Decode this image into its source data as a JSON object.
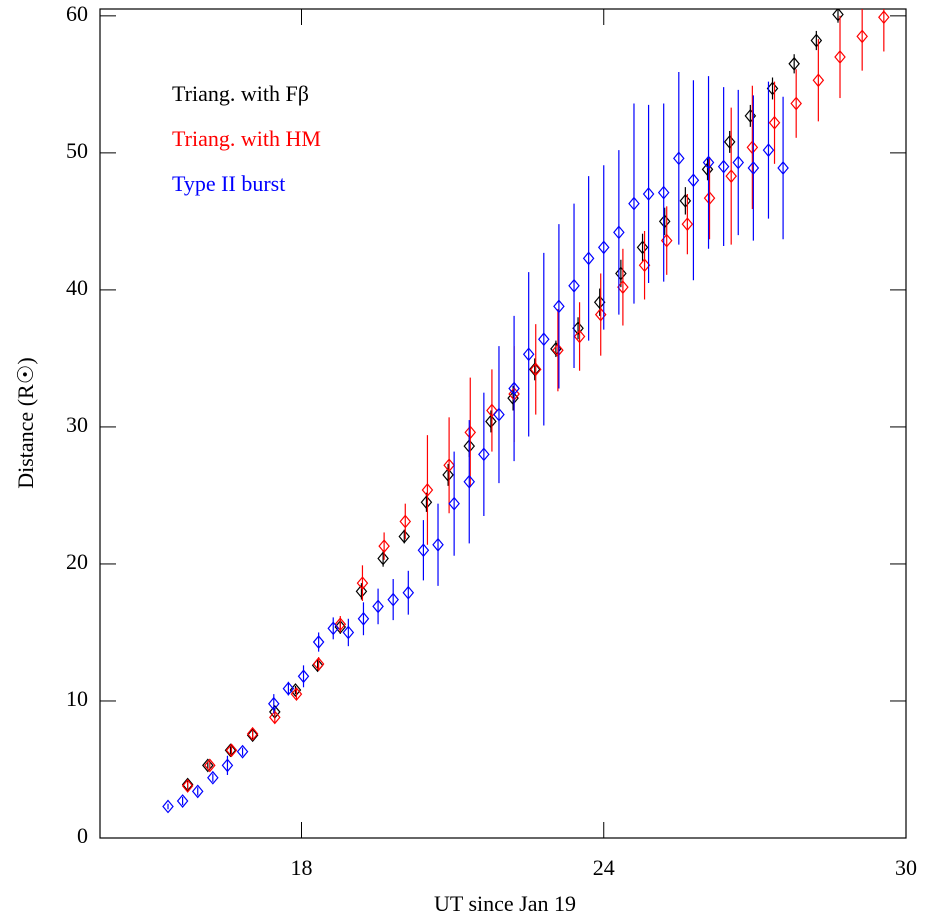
{
  "chart_data": {
    "type": "scatter",
    "x_label": "UT since Jan 19",
    "y_label": "Distance (R☉)",
    "xlim": [
      14,
      30
    ],
    "xticks": [
      18,
      24,
      30
    ],
    "ylim": [
      0,
      60.5
    ],
    "yticks": [
      0,
      10,
      20,
      30,
      40,
      50,
      60
    ],
    "grid": false,
    "legend": "upper left",
    "series": [
      {
        "name": "Triang. with Fβ",
        "color": "#000000",
        "x": [
          15.74,
          16.14,
          16.59,
          17.03,
          17.47,
          17.88,
          18.32,
          18.77,
          19.19,
          19.62,
          20.04,
          20.48,
          20.91,
          21.33,
          21.76,
          22.2,
          22.63,
          23.05,
          23.49,
          23.92,
          24.34,
          24.77,
          25.21,
          25.62,
          26.06,
          26.5,
          26.91,
          27.35,
          27.78,
          28.22,
          28.65
        ],
        "values": [
          3.9,
          5.3,
          6.4,
          7.5,
          9.2,
          10.8,
          12.6,
          15.4,
          18.0,
          20.4,
          22.0,
          24.5,
          26.5,
          28.6,
          30.4,
          32.1,
          34.2,
          35.7,
          37.2,
          39.1,
          41.2,
          43.1,
          45.0,
          46.5,
          48.8,
          50.8,
          52.7,
          54.7,
          56.5,
          58.2,
          60.1
        ],
        "errors": [
          0.3,
          0.3,
          0.3,
          0.3,
          0.3,
          0.3,
          0.4,
          0.5,
          0.6,
          0.6,
          0.5,
          0.7,
          0.8,
          0.8,
          0.8,
          0.9,
          0.8,
          0.6,
          0.8,
          1.0,
          1.0,
          1.0,
          1.0,
          1.0,
          0.8,
          0.8,
          0.8,
          0.8,
          0.7,
          0.7,
          0.6
        ]
      },
      {
        "name": "Triang. with HM",
        "color": "#ff0000",
        "x": [
          15.74,
          16.18,
          16.61,
          17.03,
          17.47,
          17.9,
          18.34,
          18.77,
          19.21,
          19.64,
          20.06,
          20.5,
          20.93,
          21.35,
          21.78,
          22.22,
          22.65,
          23.09,
          23.52,
          23.94,
          24.38,
          24.81,
          25.25,
          25.66,
          26.1,
          26.53,
          26.95,
          27.39,
          27.82,
          28.26,
          28.69,
          29.13,
          29.56
        ],
        "values": [
          3.8,
          5.3,
          6.4,
          7.6,
          8.8,
          10.5,
          12.7,
          15.6,
          18.6,
          21.3,
          23.1,
          25.4,
          27.2,
          29.6,
          31.2,
          32.4,
          34.2,
          35.6,
          36.6,
          38.2,
          40.2,
          41.8,
          43.6,
          44.8,
          46.7,
          48.3,
          50.4,
          52.2,
          53.6,
          55.3,
          57.0,
          58.5,
          59.9
        ],
        "errors": [
          0.3,
          0.3,
          0.3,
          0.3,
          0.4,
          0.4,
          0.5,
          0.6,
          1.3,
          1.0,
          1.3,
          4.0,
          3.5,
          4.0,
          3.0,
          3.5,
          3.3,
          3.0,
          2.5,
          3.0,
          2.8,
          2.5,
          2.5,
          2.2,
          3.0,
          5.0,
          4.5,
          3.0,
          2.5,
          3.0,
          3.0,
          2.5,
          2.5
        ]
      },
      {
        "name": "Type II burst",
        "color": "#0000ff",
        "x": [
          15.35,
          15.64,
          15.94,
          16.24,
          16.53,
          16.83,
          17.45,
          17.74,
          18.04,
          18.34,
          18.63,
          18.93,
          19.23,
          19.52,
          19.82,
          20.12,
          20.42,
          20.71,
          21.03,
          21.33,
          21.62,
          21.92,
          22.22,
          22.51,
          22.81,
          23.11,
          23.41,
          23.7,
          24.0,
          24.3,
          24.6,
          24.89,
          25.19,
          25.49,
          25.78,
          26.08,
          26.38,
          26.67,
          26.97,
          27.27,
          27.56
        ],
        "values": [
          2.3,
          2.7,
          3.4,
          4.4,
          5.3,
          6.3,
          9.8,
          10.9,
          11.8,
          14.3,
          15.3,
          15.0,
          16.0,
          16.9,
          17.4,
          17.9,
          21.0,
          21.4,
          24.4,
          26.0,
          28.0,
          30.9,
          32.8,
          35.3,
          36.4,
          38.8,
          40.3,
          42.3,
          43.1,
          44.2,
          46.3,
          47.0,
          47.1,
          49.6,
          48.0,
          49.3,
          49.0,
          49.3,
          48.9,
          50.2,
          48.9
        ],
        "errors": [
          0.2,
          0.3,
          0.3,
          0.3,
          0.7,
          0.3,
          0.7,
          0.5,
          0.8,
          0.7,
          0.8,
          1.0,
          1.2,
          1.3,
          1.5,
          1.6,
          2.2,
          3.0,
          3.8,
          4.5,
          4.5,
          5.0,
          5.3,
          6.0,
          6.3,
          6.0,
          6.0,
          6.0,
          6.0,
          6.0,
          7.3,
          6.5,
          6.5,
          6.3,
          7.3,
          6.3,
          5.8,
          5.3,
          5.3,
          5.0,
          5.2
        ]
      }
    ]
  }
}
